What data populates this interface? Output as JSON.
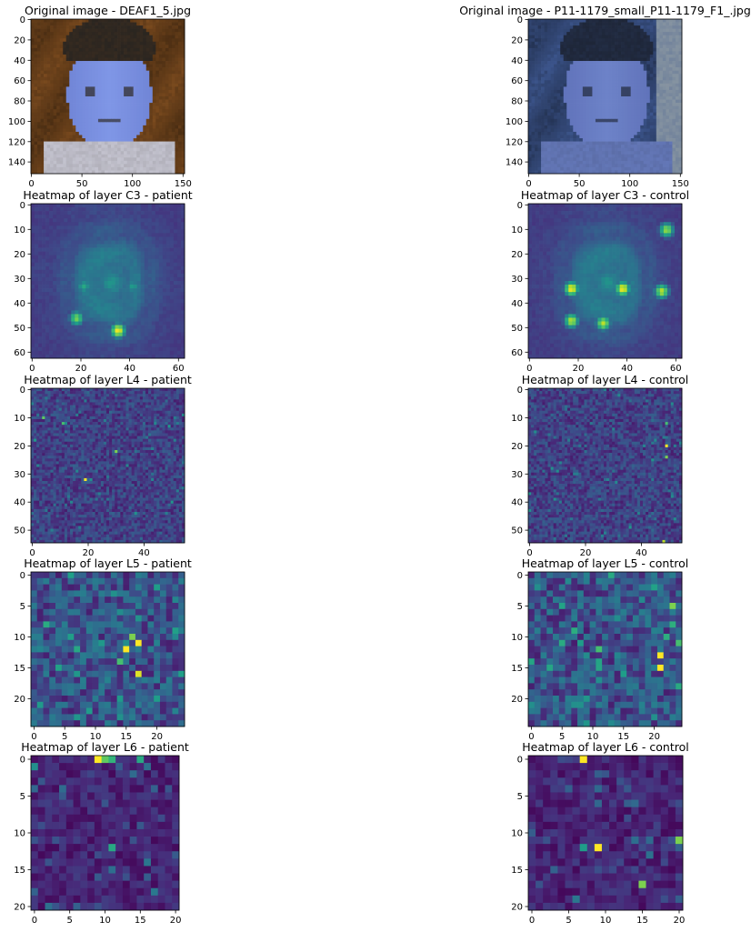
{
  "chart_data": [
    {
      "type": "heatmap",
      "title": "Original image - DEAF1_5.jpg",
      "variant": "photo",
      "nrows": 152,
      "ncols": 152,
      "xticks": [
        0,
        50,
        100,
        150
      ],
      "yticks": [
        0,
        20,
        40,
        60,
        80,
        100,
        120,
        140
      ],
      "photo_colors": [
        "#7a4a1e",
        "#2a2520",
        "#7f96e6",
        "#d8d8e6"
      ]
    },
    {
      "type": "heatmap",
      "title": "Original image - P11-1179_small_P11-1179_F1_.jpg",
      "variant": "photo",
      "nrows": 152,
      "ncols": 152,
      "xticks": [
        0,
        50,
        100,
        150
      ],
      "yticks": [
        0,
        20,
        40,
        60,
        80,
        100,
        120,
        140
      ],
      "photo_colors": [
        "#3c558c",
        "#1e2638",
        "#6d82c8",
        "#98a3a6"
      ]
    },
    {
      "type": "heatmap",
      "title": "Heatmap of layer C3 - patient",
      "variant": "smooth",
      "nrows": 63,
      "ncols": 63,
      "xticks": [
        0,
        20,
        40,
        60
      ],
      "yticks": [
        0,
        10,
        20,
        30,
        40,
        50,
        60
      ],
      "colormap": "viridis",
      "hotspots": [
        [
          35,
          51,
          1.0
        ],
        [
          18,
          46,
          0.8
        ],
        [
          21,
          33,
          0.6
        ],
        [
          41,
          33,
          0.55
        ]
      ]
    },
    {
      "type": "heatmap",
      "title": "Heatmap of layer C3 - control",
      "variant": "smooth",
      "nrows": 63,
      "ncols": 63,
      "xticks": [
        0,
        20,
        40,
        60
      ],
      "yticks": [
        0,
        10,
        20,
        30,
        40,
        50,
        60
      ],
      "colormap": "viridis",
      "hotspots": [
        [
          17,
          34,
          1.0
        ],
        [
          38,
          34,
          1.0
        ],
        [
          17,
          47,
          0.9
        ],
        [
          30,
          48,
          0.9
        ],
        [
          54,
          35,
          0.9
        ],
        [
          56,
          10,
          0.85
        ]
      ]
    },
    {
      "type": "heatmap",
      "title": "Heatmap of layer L4 - patient",
      "variant": "noise",
      "nrows": 55,
      "ncols": 55,
      "xticks": [
        0,
        20,
        40
      ],
      "yticks": [
        0,
        10,
        20,
        30,
        40,
        50
      ],
      "colormap": "viridis",
      "hotspots": [
        [
          19,
          32,
          1.0
        ],
        [
          30,
          22,
          0.8
        ],
        [
          4,
          10,
          0.75
        ],
        [
          11,
          12,
          0.7
        ]
      ]
    },
    {
      "type": "heatmap",
      "title": "Heatmap of layer L4 - control",
      "variant": "noise",
      "nrows": 55,
      "ncols": 55,
      "xticks": [
        0,
        20,
        40
      ],
      "yticks": [
        0,
        10,
        20,
        30,
        40,
        50
      ],
      "colormap": "viridis",
      "hotspots": [
        [
          49,
          20,
          1.0
        ],
        [
          49,
          24,
          0.8
        ],
        [
          49,
          12,
          0.7
        ],
        [
          48,
          54,
          0.9
        ]
      ]
    },
    {
      "type": "heatmap",
      "title": "Heatmap of layer L5 - patient",
      "variant": "block",
      "nrows": 25,
      "ncols": 25,
      "xticks": [
        0,
        5,
        10,
        15,
        20
      ],
      "yticks": [
        0,
        5,
        10,
        15,
        20
      ],
      "colormap": "viridis",
      "hotspots": [
        [
          15,
          12,
          1.0
        ],
        [
          17,
          11,
          1.0
        ],
        [
          17,
          16,
          0.95
        ],
        [
          16,
          10,
          0.8
        ],
        [
          14,
          14,
          0.7
        ]
      ]
    },
    {
      "type": "heatmap",
      "title": "Heatmap of layer L5 - control",
      "variant": "block",
      "nrows": 25,
      "ncols": 25,
      "xticks": [
        0,
        5,
        10,
        15,
        20
      ],
      "yticks": [
        0,
        5,
        10,
        15,
        20
      ],
      "colormap": "viridis",
      "hotspots": [
        [
          21,
          13,
          1.0
        ],
        [
          21,
          15,
          1.0
        ],
        [
          23,
          5,
          0.8
        ],
        [
          24,
          11,
          0.7
        ],
        [
          11,
          12,
          0.7
        ]
      ]
    },
    {
      "type": "heatmap",
      "title": "Heatmap of layer L6 - patient",
      "variant": "sparse",
      "nrows": 21,
      "ncols": 21,
      "xticks": [
        0,
        5,
        10,
        15,
        20
      ],
      "yticks": [
        0,
        5,
        10,
        15,
        20
      ],
      "colormap": "viridis",
      "hotspots": [
        [
          9,
          0,
          1.0
        ],
        [
          10,
          0,
          0.75
        ],
        [
          11,
          0,
          0.65
        ],
        [
          15,
          0,
          0.6
        ],
        [
          11,
          12,
          0.6
        ],
        [
          0,
          1,
          0.5
        ]
      ]
    },
    {
      "type": "heatmap",
      "title": "Heatmap of layer L6 - control",
      "variant": "sparse",
      "nrows": 21,
      "ncols": 21,
      "xticks": [
        0,
        5,
        10,
        15,
        20
      ],
      "yticks": [
        0,
        5,
        10,
        15,
        20
      ],
      "colormap": "viridis",
      "hotspots": [
        [
          7,
          0,
          1.0
        ],
        [
          9,
          12,
          1.0
        ],
        [
          15,
          17,
          0.8
        ],
        [
          20,
          11,
          0.8
        ],
        [
          7,
          12,
          0.55
        ]
      ]
    }
  ]
}
